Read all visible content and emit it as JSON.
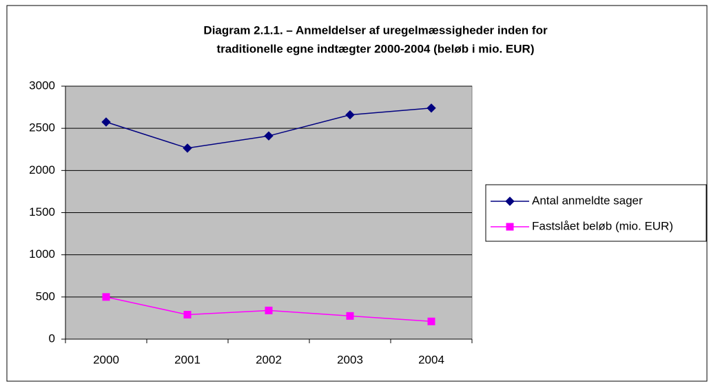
{
  "chart_data": {
    "type": "line",
    "title": [
      "Diagram 2.1.1. – Anmeldelser af uregelmæssigheder inden for",
      "traditionelle egne indtægter 2000-2004 (beløb i mio. EUR)"
    ],
    "categories": [
      "2000",
      "2001",
      "2002",
      "2003",
      "2004"
    ],
    "series": [
      {
        "name": "Antal anmeldte sager",
        "color": "#000080",
        "marker": "diamond",
        "values": [
          2575,
          2265,
          2410,
          2660,
          2740
        ]
      },
      {
        "name": "Fastslået beløb (mio. EUR)",
        "color": "#ff00ff",
        "marker": "square",
        "values": [
          500,
          290,
          340,
          275,
          210
        ]
      }
    ],
    "ylim": [
      0,
      3000
    ],
    "yticks": [
      0,
      500,
      1000,
      1500,
      2000,
      2500,
      3000
    ],
    "grid": true,
    "legend": "right"
  }
}
